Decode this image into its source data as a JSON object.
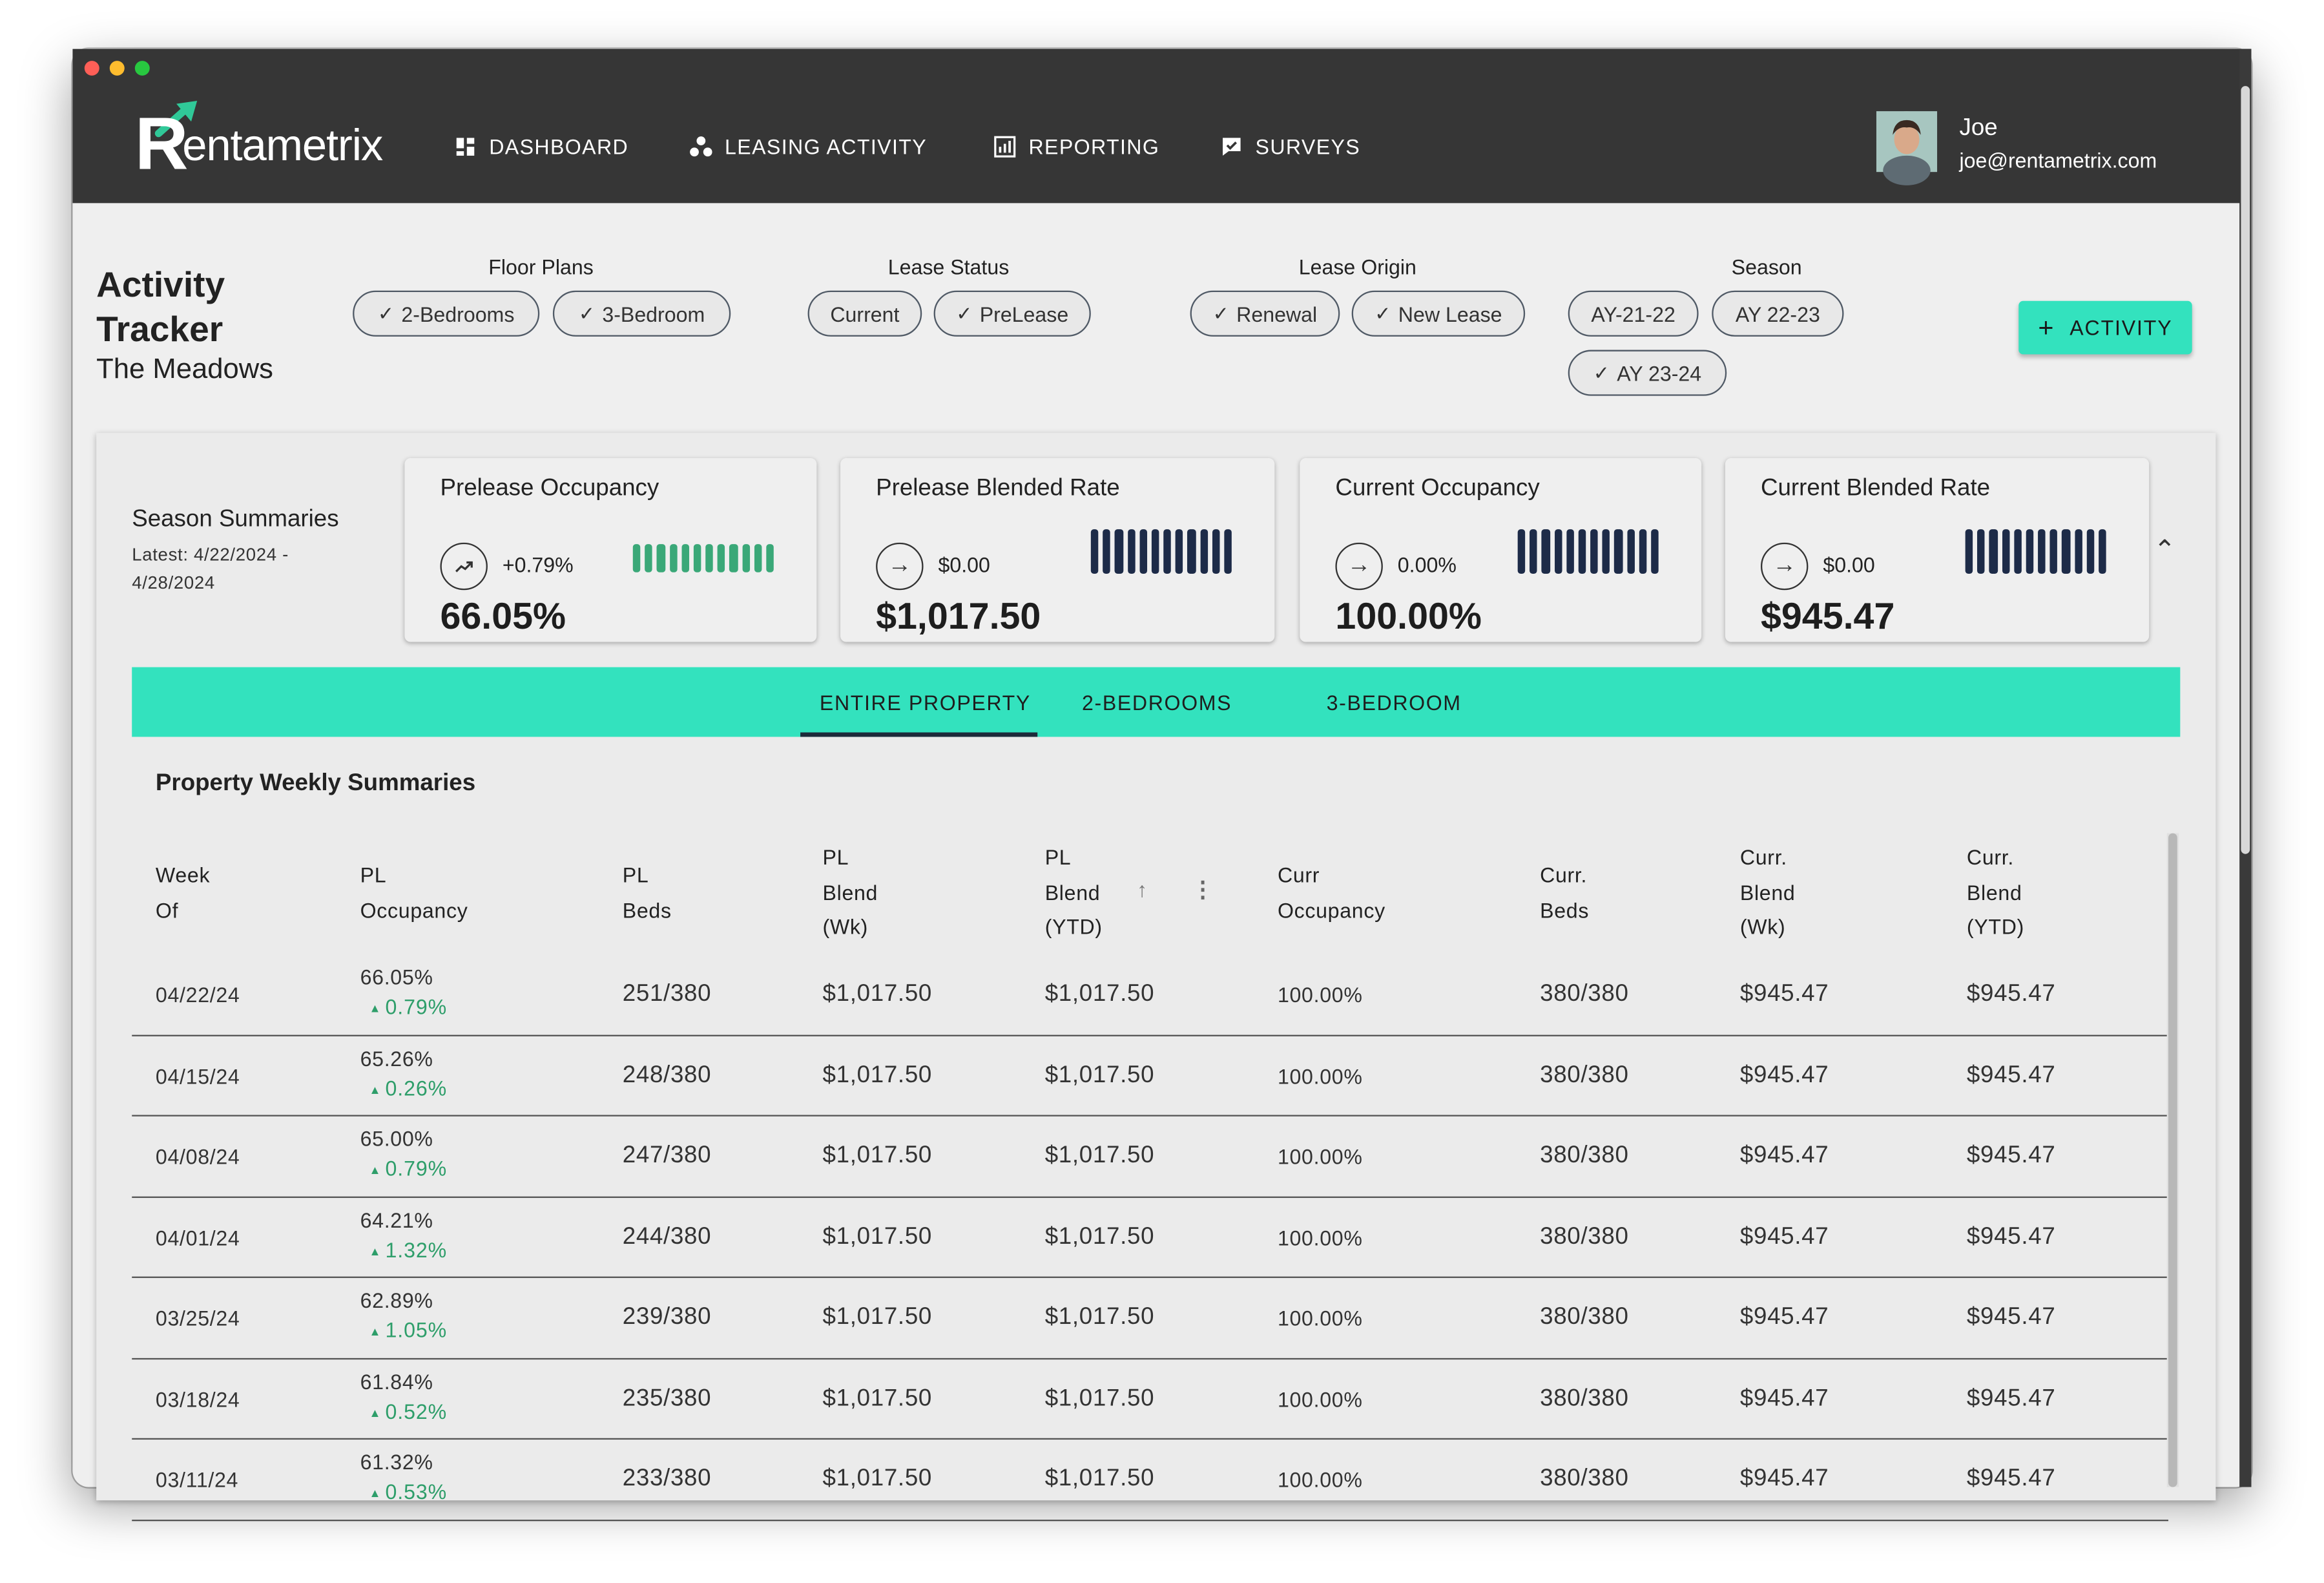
{
  "app": {
    "name": "Rentametrix",
    "logo_initial": "R",
    "logo_rest": "entametrix"
  },
  "nav": [
    {
      "label": "DASHBOARD",
      "icon": "dashboard-icon"
    },
    {
      "label": "LEASING ACTIVITY",
      "icon": "people-icon"
    },
    {
      "label": "REPORTING",
      "icon": "report-icon"
    },
    {
      "label": "SURVEYS",
      "icon": "survey-icon"
    }
  ],
  "user": {
    "name": "Joe",
    "email": "joe@rentametrix.com"
  },
  "page": {
    "title": "Activity Tracker",
    "subtitle": "The Meadows",
    "add_button": "ACTIVITY"
  },
  "filters": {
    "floor_plans": {
      "label": "Floor Plans",
      "chips": [
        {
          "label": "2-Bedrooms",
          "selected": true
        },
        {
          "label": "3-Bedroom",
          "selected": true
        }
      ]
    },
    "lease_status": {
      "label": "Lease Status",
      "chips": [
        {
          "label": "Current",
          "selected": false
        },
        {
          "label": "PreLease",
          "selected": true
        }
      ]
    },
    "lease_origin": {
      "label": "Lease Origin",
      "chips": [
        {
          "label": "Renewal",
          "selected": true
        },
        {
          "label": "New Lease",
          "selected": true
        }
      ]
    },
    "season": {
      "label": "Season",
      "chips": [
        {
          "label": "AY-21-22",
          "selected": false
        },
        {
          "label": "AY 22-23",
          "selected": false
        },
        {
          "label": "AY 23-24",
          "selected": true
        }
      ]
    }
  },
  "season_summaries": {
    "title": "Season Summaries",
    "date_range": "Latest: 4/22/2024 - 4/28/2024",
    "cards": [
      {
        "title": "Prelease Occupancy",
        "change": "+0.79%",
        "trend": "up",
        "value": "66.05%",
        "spark_color": "#3aa878",
        "spark_levels": [
          0.66,
          0.65,
          0.65,
          0.64,
          0.63,
          0.62,
          0.61,
          0.6,
          0.59,
          0.58,
          0.57,
          0.56
        ]
      },
      {
        "title": "Prelease Blended Rate",
        "change": "$0.00",
        "trend": "flat",
        "value": "$1,017.50",
        "spark_color": "#1d2b48",
        "spark_levels": [
          1,
          1,
          1,
          1,
          1,
          1,
          1,
          1,
          1,
          1,
          1,
          1
        ]
      },
      {
        "title": "Current Occupancy",
        "change": "0.00%",
        "trend": "flat",
        "value": "100.00%",
        "spark_color": "#1d2b48",
        "spark_levels": [
          1,
          1,
          1,
          1,
          1,
          1,
          1,
          1,
          1,
          1,
          1,
          1
        ]
      },
      {
        "title": "Current Blended Rate",
        "change": "$0.00",
        "trend": "flat",
        "value": "$945.47",
        "spark_color": "#1d2b48",
        "spark_levels": [
          1,
          1,
          1,
          1,
          1,
          1,
          1,
          1,
          1,
          1,
          1,
          1
        ]
      }
    ]
  },
  "tabs": [
    {
      "label": "ENTIRE PROPERTY",
      "active": true
    },
    {
      "label": "2-BEDROOMS",
      "active": false
    },
    {
      "label": "3-BEDROOM",
      "active": false
    }
  ],
  "table": {
    "title": "Property Weekly Summaries",
    "columns": [
      [
        "Week",
        "Of"
      ],
      [
        "PL",
        "Occupancy"
      ],
      [
        "PL",
        "Beds"
      ],
      [
        "PL",
        "Blend",
        "(Wk)"
      ],
      [
        "PL",
        "Blend",
        "(YTD)"
      ],
      [
        "Curr",
        "Occupancy"
      ],
      [
        "Curr.",
        "Beds"
      ],
      [
        "Curr.",
        "Blend",
        "(Wk)"
      ],
      [
        "Curr.",
        "Blend",
        "(YTD)"
      ]
    ],
    "rows": [
      {
        "week": "04/22/24",
        "pl_occ": "66.05%",
        "pl_delta": "0.79%",
        "pl_beds": "251/380",
        "pl_blend_wk": "$1,017.50",
        "pl_blend_ytd": "$1,017.50",
        "curr_occ": "100.00%",
        "curr_beds": "380/380",
        "curr_blend_wk": "$945.47",
        "curr_blend_ytd": "$945.47"
      },
      {
        "week": "04/15/24",
        "pl_occ": "65.26%",
        "pl_delta": "0.26%",
        "pl_beds": "248/380",
        "pl_blend_wk": "$1,017.50",
        "pl_blend_ytd": "$1,017.50",
        "curr_occ": "100.00%",
        "curr_beds": "380/380",
        "curr_blend_wk": "$945.47",
        "curr_blend_ytd": "$945.47"
      },
      {
        "week": "04/08/24",
        "pl_occ": "65.00%",
        "pl_delta": "0.79%",
        "pl_beds": "247/380",
        "pl_blend_wk": "$1,017.50",
        "pl_blend_ytd": "$1,017.50",
        "curr_occ": "100.00%",
        "curr_beds": "380/380",
        "curr_blend_wk": "$945.47",
        "curr_blend_ytd": "$945.47"
      },
      {
        "week": "04/01/24",
        "pl_occ": "64.21%",
        "pl_delta": "1.32%",
        "pl_beds": "244/380",
        "pl_blend_wk": "$1,017.50",
        "pl_blend_ytd": "$1,017.50",
        "curr_occ": "100.00%",
        "curr_beds": "380/380",
        "curr_blend_wk": "$945.47",
        "curr_blend_ytd": "$945.47"
      },
      {
        "week": "03/25/24",
        "pl_occ": "62.89%",
        "pl_delta": "1.05%",
        "pl_beds": "239/380",
        "pl_blend_wk": "$1,017.50",
        "pl_blend_ytd": "$1,017.50",
        "curr_occ": "100.00%",
        "curr_beds": "380/380",
        "curr_blend_wk": "$945.47",
        "curr_blend_ytd": "$945.47"
      },
      {
        "week": "03/18/24",
        "pl_occ": "61.84%",
        "pl_delta": "0.52%",
        "pl_beds": "235/380",
        "pl_blend_wk": "$1,017.50",
        "pl_blend_ytd": "$1,017.50",
        "curr_occ": "100.00%",
        "curr_beds": "380/380",
        "curr_blend_wk": "$945.47",
        "curr_blend_ytd": "$945.47"
      },
      {
        "week": "03/11/24",
        "pl_occ": "61.32%",
        "pl_delta": "0.53%",
        "pl_beds": "233/380",
        "pl_blend_wk": "$1,017.50",
        "pl_blend_ytd": "$1,017.50",
        "curr_occ": "100.00%",
        "curr_beds": "380/380",
        "curr_blend_wk": "$945.47",
        "curr_blend_ytd": "$945.47"
      }
    ]
  },
  "colors": {
    "accent": "#33e2be",
    "header_bg": "#363636",
    "positive": "#2e9e6a",
    "dark_navy": "#1d2b48"
  }
}
